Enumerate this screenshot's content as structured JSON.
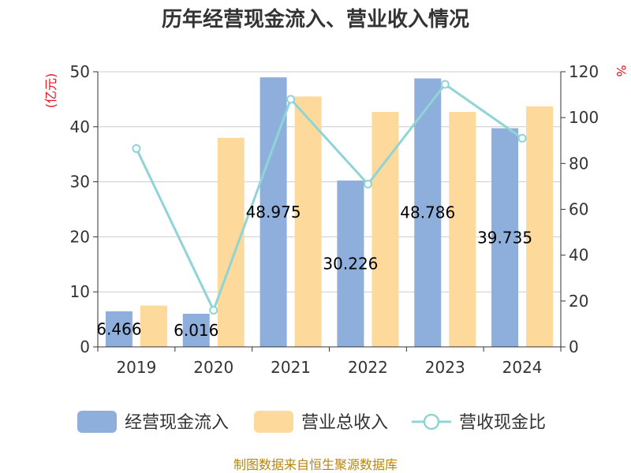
{
  "chart_data": {
    "type": "bar",
    "title": "历年经营现金流入、营业收入情况",
    "categories": [
      "2019",
      "2020",
      "2021",
      "2022",
      "2023",
      "2024"
    ],
    "series": [
      {
        "name": "经营现金流入",
        "type": "bar",
        "axis": "left",
        "color": "#8eaedb",
        "values": [
          6.466,
          6.016,
          48.975,
          30.226,
          48.786,
          39.735
        ]
      },
      {
        "name": "营业总收入",
        "type": "bar",
        "axis": "left",
        "color": "#fdd99b",
        "values": [
          7.5,
          38.0,
          45.5,
          42.7,
          42.7,
          43.7
        ]
      },
      {
        "name": "营收现金比",
        "type": "line",
        "axis": "right",
        "color": "#8fd4d6",
        "values": [
          86.5,
          16.0,
          108.0,
          71.0,
          114.5,
          91.0
        ]
      }
    ],
    "data_labels": [
      "6.466",
      "6.016",
      "48.975",
      "30.226",
      "48.786",
      "39.735"
    ],
    "y_left": {
      "unit": "(亿元)",
      "min": 0,
      "max": 50,
      "ticks": [
        0,
        10,
        20,
        30,
        40,
        50
      ]
    },
    "y_right": {
      "unit": "%",
      "min": 0,
      "max": 120,
      "ticks": [
        0,
        20,
        40,
        60,
        80,
        100,
        120
      ]
    },
    "grid": true,
    "legend_position": "bottom"
  },
  "source": "制图数据来自恒生聚源数据库"
}
